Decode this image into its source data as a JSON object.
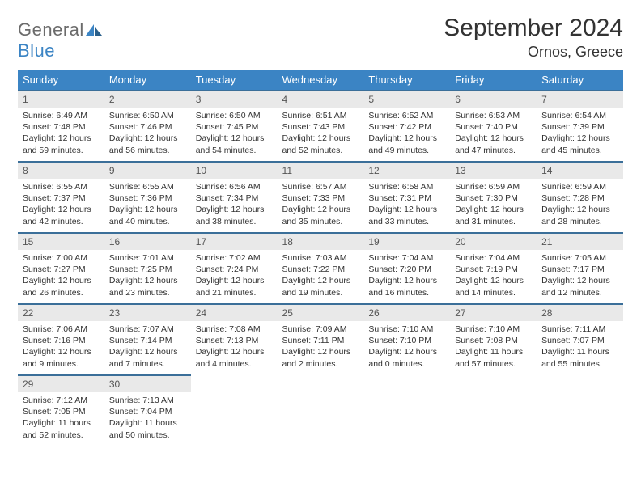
{
  "brand": {
    "name_part1": "General",
    "name_part2": "Blue"
  },
  "title": "September 2024",
  "location": "Ornos, Greece",
  "colors": {
    "header_bg": "#3b84c4",
    "header_text": "#ffffff",
    "daynum_bg": "#e9e9e9",
    "daynum_border": "#3b6f99",
    "body_text": "#333333",
    "page_bg": "#ffffff"
  },
  "day_headers": [
    "Sunday",
    "Monday",
    "Tuesday",
    "Wednesday",
    "Thursday",
    "Friday",
    "Saturday"
  ],
  "days": [
    {
      "n": "1",
      "sunrise": "Sunrise: 6:49 AM",
      "sunset": "Sunset: 7:48 PM",
      "daylight": "Daylight: 12 hours and 59 minutes."
    },
    {
      "n": "2",
      "sunrise": "Sunrise: 6:50 AM",
      "sunset": "Sunset: 7:46 PM",
      "daylight": "Daylight: 12 hours and 56 minutes."
    },
    {
      "n": "3",
      "sunrise": "Sunrise: 6:50 AM",
      "sunset": "Sunset: 7:45 PM",
      "daylight": "Daylight: 12 hours and 54 minutes."
    },
    {
      "n": "4",
      "sunrise": "Sunrise: 6:51 AM",
      "sunset": "Sunset: 7:43 PM",
      "daylight": "Daylight: 12 hours and 52 minutes."
    },
    {
      "n": "5",
      "sunrise": "Sunrise: 6:52 AM",
      "sunset": "Sunset: 7:42 PM",
      "daylight": "Daylight: 12 hours and 49 minutes."
    },
    {
      "n": "6",
      "sunrise": "Sunrise: 6:53 AM",
      "sunset": "Sunset: 7:40 PM",
      "daylight": "Daylight: 12 hours and 47 minutes."
    },
    {
      "n": "7",
      "sunrise": "Sunrise: 6:54 AM",
      "sunset": "Sunset: 7:39 PM",
      "daylight": "Daylight: 12 hours and 45 minutes."
    },
    {
      "n": "8",
      "sunrise": "Sunrise: 6:55 AM",
      "sunset": "Sunset: 7:37 PM",
      "daylight": "Daylight: 12 hours and 42 minutes."
    },
    {
      "n": "9",
      "sunrise": "Sunrise: 6:55 AM",
      "sunset": "Sunset: 7:36 PM",
      "daylight": "Daylight: 12 hours and 40 minutes."
    },
    {
      "n": "10",
      "sunrise": "Sunrise: 6:56 AM",
      "sunset": "Sunset: 7:34 PM",
      "daylight": "Daylight: 12 hours and 38 minutes."
    },
    {
      "n": "11",
      "sunrise": "Sunrise: 6:57 AM",
      "sunset": "Sunset: 7:33 PM",
      "daylight": "Daylight: 12 hours and 35 minutes."
    },
    {
      "n": "12",
      "sunrise": "Sunrise: 6:58 AM",
      "sunset": "Sunset: 7:31 PM",
      "daylight": "Daylight: 12 hours and 33 minutes."
    },
    {
      "n": "13",
      "sunrise": "Sunrise: 6:59 AM",
      "sunset": "Sunset: 7:30 PM",
      "daylight": "Daylight: 12 hours and 31 minutes."
    },
    {
      "n": "14",
      "sunrise": "Sunrise: 6:59 AM",
      "sunset": "Sunset: 7:28 PM",
      "daylight": "Daylight: 12 hours and 28 minutes."
    },
    {
      "n": "15",
      "sunrise": "Sunrise: 7:00 AM",
      "sunset": "Sunset: 7:27 PM",
      "daylight": "Daylight: 12 hours and 26 minutes."
    },
    {
      "n": "16",
      "sunrise": "Sunrise: 7:01 AM",
      "sunset": "Sunset: 7:25 PM",
      "daylight": "Daylight: 12 hours and 23 minutes."
    },
    {
      "n": "17",
      "sunrise": "Sunrise: 7:02 AM",
      "sunset": "Sunset: 7:24 PM",
      "daylight": "Daylight: 12 hours and 21 minutes."
    },
    {
      "n": "18",
      "sunrise": "Sunrise: 7:03 AM",
      "sunset": "Sunset: 7:22 PM",
      "daylight": "Daylight: 12 hours and 19 minutes."
    },
    {
      "n": "19",
      "sunrise": "Sunrise: 7:04 AM",
      "sunset": "Sunset: 7:20 PM",
      "daylight": "Daylight: 12 hours and 16 minutes."
    },
    {
      "n": "20",
      "sunrise": "Sunrise: 7:04 AM",
      "sunset": "Sunset: 7:19 PM",
      "daylight": "Daylight: 12 hours and 14 minutes."
    },
    {
      "n": "21",
      "sunrise": "Sunrise: 7:05 AM",
      "sunset": "Sunset: 7:17 PM",
      "daylight": "Daylight: 12 hours and 12 minutes."
    },
    {
      "n": "22",
      "sunrise": "Sunrise: 7:06 AM",
      "sunset": "Sunset: 7:16 PM",
      "daylight": "Daylight: 12 hours and 9 minutes."
    },
    {
      "n": "23",
      "sunrise": "Sunrise: 7:07 AM",
      "sunset": "Sunset: 7:14 PM",
      "daylight": "Daylight: 12 hours and 7 minutes."
    },
    {
      "n": "24",
      "sunrise": "Sunrise: 7:08 AM",
      "sunset": "Sunset: 7:13 PM",
      "daylight": "Daylight: 12 hours and 4 minutes."
    },
    {
      "n": "25",
      "sunrise": "Sunrise: 7:09 AM",
      "sunset": "Sunset: 7:11 PM",
      "daylight": "Daylight: 12 hours and 2 minutes."
    },
    {
      "n": "26",
      "sunrise": "Sunrise: 7:10 AM",
      "sunset": "Sunset: 7:10 PM",
      "daylight": "Daylight: 12 hours and 0 minutes."
    },
    {
      "n": "27",
      "sunrise": "Sunrise: 7:10 AM",
      "sunset": "Sunset: 7:08 PM",
      "daylight": "Daylight: 11 hours and 57 minutes."
    },
    {
      "n": "28",
      "sunrise": "Sunrise: 7:11 AM",
      "sunset": "Sunset: 7:07 PM",
      "daylight": "Daylight: 11 hours and 55 minutes."
    },
    {
      "n": "29",
      "sunrise": "Sunrise: 7:12 AM",
      "sunset": "Sunset: 7:05 PM",
      "daylight": "Daylight: 11 hours and 52 minutes."
    },
    {
      "n": "30",
      "sunrise": "Sunrise: 7:13 AM",
      "sunset": "Sunset: 7:04 PM",
      "daylight": "Daylight: 11 hours and 50 minutes."
    }
  ]
}
